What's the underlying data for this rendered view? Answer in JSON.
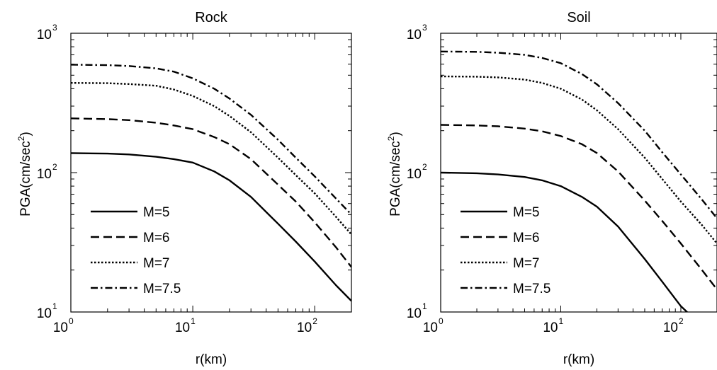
{
  "chart_data": [
    {
      "type": "line",
      "title": "Rock",
      "xlabel": "r(km)",
      "ylabel": "PGA(cm/sec",
      "ylabel_sup": "2",
      "ylabel_close": ")",
      "xscale": "log",
      "yscale": "log",
      "xlim": [
        1,
        200
      ],
      "ylim": [
        10,
        1000
      ],
      "xticks": [
        {
          "base": "10",
          "exp": "0",
          "value": 1
        },
        {
          "base": "10",
          "exp": "1",
          "value": 10
        },
        {
          "base": "10",
          "exp": "2",
          "value": 100
        }
      ],
      "yticks": [
        {
          "base": "10",
          "exp": "1",
          "value": 10
        },
        {
          "base": "10",
          "exp": "2",
          "value": 100
        },
        {
          "base": "10",
          "exp": "3",
          "value": 1000
        }
      ],
      "grid": false,
      "legend_position": "lower-left",
      "series": [
        {
          "name": "M=5",
          "style": "solid",
          "x": [
            1,
            2,
            3,
            5,
            7,
            10,
            15,
            20,
            30,
            50,
            70,
            100,
            150,
            200
          ],
          "y": [
            138,
            137,
            135,
            130,
            125,
            118,
            102,
            88,
            67,
            43,
            32,
            23,
            15.5,
            12
          ]
        },
        {
          "name": "M=6",
          "style": "dashed",
          "x": [
            1,
            2,
            3,
            5,
            7,
            10,
            15,
            20,
            30,
            50,
            70,
            100,
            150,
            200
          ],
          "y": [
            245,
            242,
            238,
            228,
            218,
            205,
            180,
            160,
            125,
            82,
            62,
            44,
            29,
            21
          ]
        },
        {
          "name": "M=7",
          "style": "dotted",
          "x": [
            1,
            2,
            3,
            5,
            7,
            10,
            15,
            20,
            30,
            50,
            70,
            100,
            150,
            200
          ],
          "y": [
            440,
            438,
            432,
            420,
            395,
            355,
            300,
            255,
            195,
            128,
            96,
            71,
            48,
            36
          ]
        },
        {
          "name": "M=7.5",
          "style": "dashdot",
          "x": [
            1,
            2,
            3,
            5,
            7,
            10,
            15,
            20,
            30,
            50,
            70,
            100,
            150,
            200
          ],
          "y": [
            595,
            590,
            582,
            560,
            530,
            475,
            400,
            340,
            260,
            172,
            128,
            94,
            65,
            50
          ]
        }
      ]
    },
    {
      "type": "line",
      "title": "Soil",
      "xlabel": "r(km)",
      "ylabel": "PGA(cm/sec",
      "ylabel_sup": "2",
      "ylabel_close": ")",
      "xscale": "log",
      "yscale": "log",
      "xlim": [
        1,
        200
      ],
      "ylim": [
        10,
        1000
      ],
      "xticks": [
        {
          "base": "10",
          "exp": "0",
          "value": 1
        },
        {
          "base": "10",
          "exp": "1",
          "value": 10
        },
        {
          "base": "10",
          "exp": "2",
          "value": 100
        }
      ],
      "yticks": [
        {
          "base": "10",
          "exp": "1",
          "value": 10
        },
        {
          "base": "10",
          "exp": "2",
          "value": 100
        },
        {
          "base": "10",
          "exp": "3",
          "value": 1000
        }
      ],
      "grid": false,
      "legend_position": "lower-left",
      "series": [
        {
          "name": "M=5",
          "style": "solid",
          "x": [
            1,
            2,
            3,
            5,
            7,
            10,
            15,
            20,
            30,
            50,
            70,
            100,
            120
          ],
          "y": [
            100,
            99,
            97,
            93,
            88,
            80,
            67,
            57,
            41,
            24,
            16.5,
            11,
            9.5
          ]
        },
        {
          "name": "M=6",
          "style": "dashed",
          "x": [
            1,
            2,
            3,
            5,
            7,
            10,
            15,
            20,
            30,
            50,
            70,
            100,
            150,
            200
          ],
          "y": [
            220,
            218,
            215,
            207,
            198,
            183,
            160,
            138,
            102,
            63,
            45,
            31,
            20,
            14.5
          ]
        },
        {
          "name": "M=7",
          "style": "dotted",
          "x": [
            1,
            2,
            3,
            5,
            7,
            10,
            15,
            20,
            30,
            50,
            70,
            100,
            150,
            200
          ],
          "y": [
            490,
            488,
            482,
            465,
            440,
            400,
            335,
            280,
            205,
            128,
            90,
            62,
            42,
            31
          ]
        },
        {
          "name": "M=7.5",
          "style": "dashdot",
          "x": [
            1,
            2,
            3,
            5,
            7,
            10,
            15,
            20,
            30,
            50,
            70,
            100,
            150,
            200
          ],
          "y": [
            740,
            735,
            725,
            700,
            665,
            610,
            510,
            430,
            315,
            200,
            140,
            97,
            64,
            47
          ]
        }
      ]
    }
  ]
}
